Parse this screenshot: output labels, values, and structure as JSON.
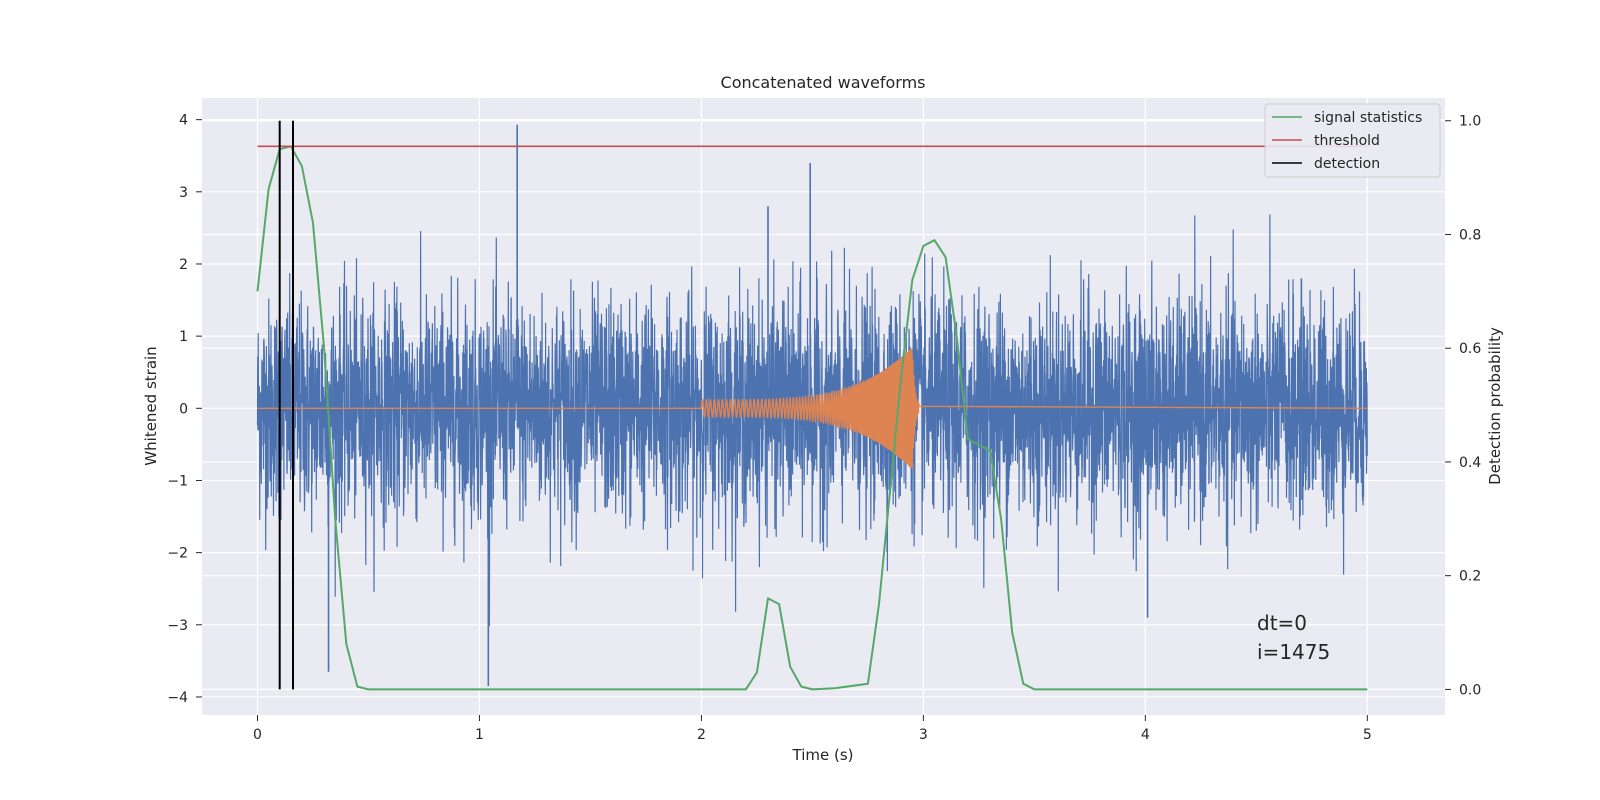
{
  "chart_data": {
    "type": "line",
    "title": "Concatenated waveforms",
    "xlabel": "Time (s)",
    "ylabel": "Whitened strain",
    "y2label": "Detection probability",
    "xlim": [
      -0.25,
      5.35
    ],
    "ylim": [
      -4.25,
      4.3
    ],
    "y2lim": [
      -0.045,
      1.04
    ],
    "xticks": [
      0,
      1,
      2,
      3,
      4,
      5
    ],
    "yticks": [
      -4,
      -3,
      -2,
      -1,
      0,
      1,
      2,
      3,
      4
    ],
    "y2ticks": [
      0.0,
      0.2,
      0.4,
      0.6,
      0.8,
      1.0
    ],
    "xtick_labels": [
      "0",
      "1",
      "2",
      "3",
      "4",
      "5"
    ],
    "ytick_labels": [
      "−4",
      "−3",
      "−2",
      "−1",
      "0",
      "1",
      "2",
      "3",
      "4"
    ],
    "y2tick_labels": [
      "0.0",
      "0.2",
      "0.4",
      "0.6",
      "0.8",
      "1.0"
    ],
    "grid": true,
    "legend_position": "top-right",
    "background": "#eaeaf2",
    "series": [
      {
        "key": "strain",
        "color": "#4c72b0",
        "noise_std": 0.75,
        "spikes": [
          [
            1.17,
            3.93
          ],
          [
            1.04,
            -3.85
          ],
          [
            2.49,
            3.4
          ],
          [
            0.32,
            -3.65
          ],
          [
            2.3,
            2.8
          ],
          [
            4.01,
            -2.9
          ]
        ]
      },
      {
        "key": "waveform",
        "color": "#dd8452",
        "t_start": 2.0,
        "t_merge": 2.95,
        "amp_start": 0.12,
        "amp_peak": 0.85
      },
      {
        "key": "signal_stats",
        "name": "signal statistics",
        "color": "#55a868",
        "axis": "right",
        "x": [
          0.0,
          0.05,
          0.1,
          0.15,
          0.2,
          0.25,
          0.3,
          0.35,
          0.4,
          0.45,
          0.5,
          1.0,
          2.0,
          2.2,
          2.25,
          2.3,
          2.35,
          2.4,
          2.45,
          2.5,
          2.6,
          2.75,
          2.8,
          2.85,
          2.9,
          2.95,
          3.0,
          3.05,
          3.1,
          3.15,
          3.2,
          3.25,
          3.3,
          3.35,
          3.4,
          3.45,
          3.5,
          4.0,
          4.5,
          5.0
        ],
        "y": [
          0.7,
          0.88,
          0.95,
          0.955,
          0.92,
          0.82,
          0.6,
          0.3,
          0.08,
          0.005,
          0.0,
          0.0,
          0.0,
          0.0,
          0.03,
          0.16,
          0.15,
          0.04,
          0.005,
          0.0,
          0.002,
          0.01,
          0.15,
          0.35,
          0.55,
          0.72,
          0.78,
          0.79,
          0.76,
          0.62,
          0.44,
          0.43,
          0.42,
          0.3,
          0.1,
          0.01,
          0.0,
          0.0,
          0.0,
          0.0
        ]
      },
      {
        "key": "threshold",
        "name": "threshold",
        "color": "#c44e52",
        "axis": "right",
        "x": [
          0.0,
          5.0
        ],
        "y": [
          0.955,
          0.955
        ]
      },
      {
        "key": "detection",
        "name": "detection",
        "color": "#000000",
        "axis": "right",
        "x": [
          0.1,
          0.16
        ],
        "y_range": [
          0.0,
          1.0
        ]
      }
    ],
    "legend": [
      "signal statistics",
      "threshold",
      "detection"
    ],
    "annotation": {
      "line1": "dt=0",
      "line2": "i=1475",
      "x": 4.5,
      "y": -3.4
    }
  }
}
